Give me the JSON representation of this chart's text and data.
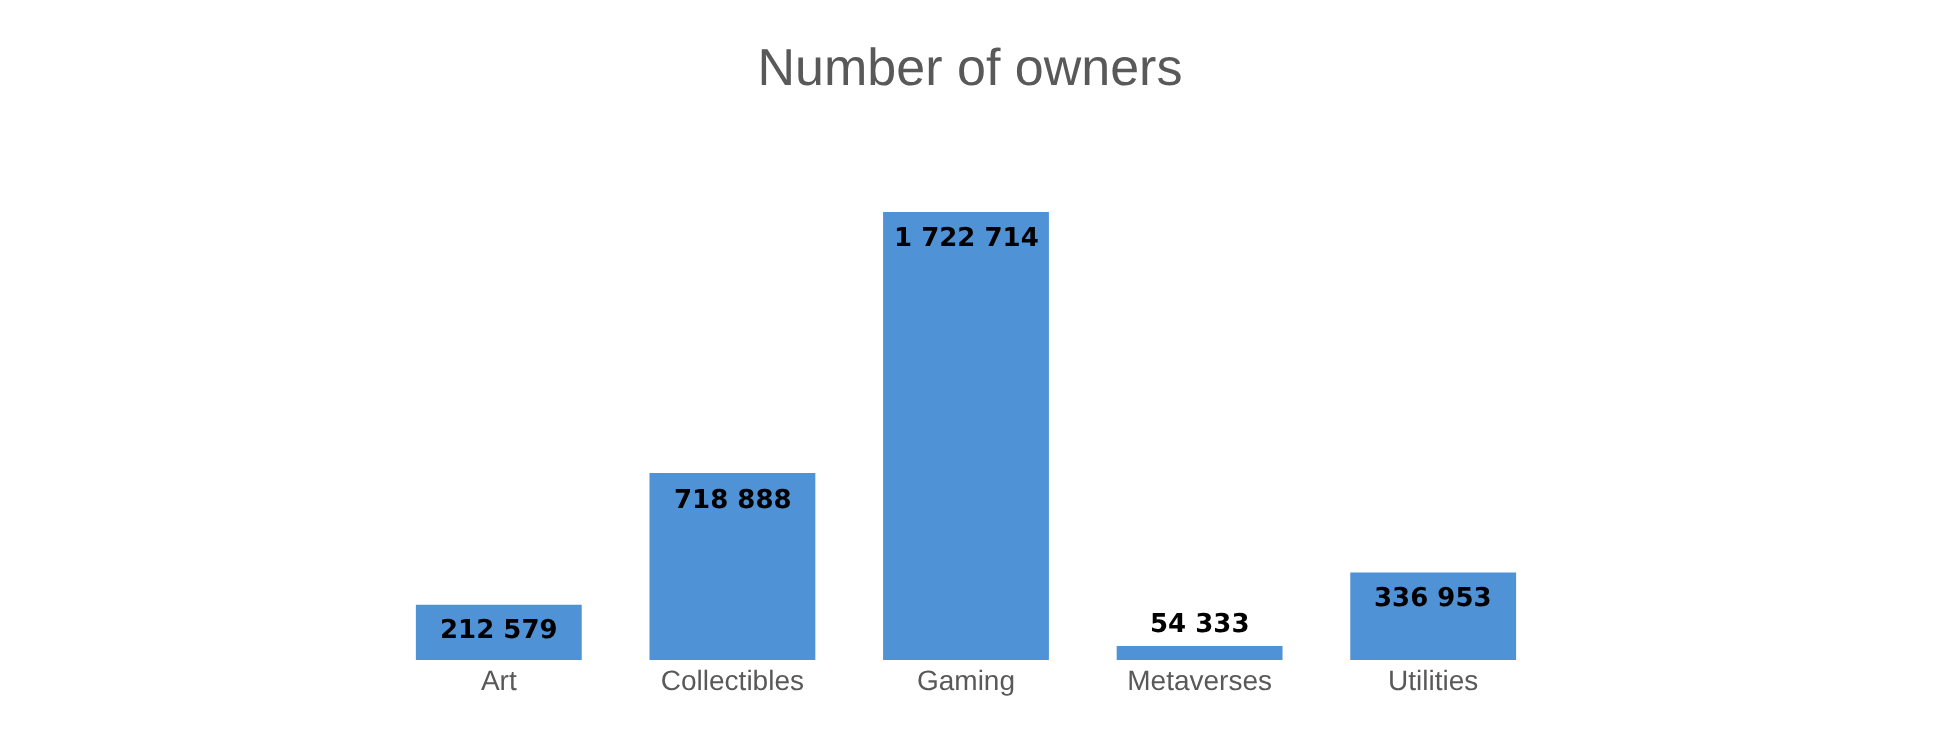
{
  "chart_data": {
    "type": "bar",
    "title": "Number of owners",
    "categories": [
      "Art",
      "Collectibles",
      "Gaming",
      "Metaverses",
      "Utilities"
    ],
    "values": [
      212579,
      718888,
      1722714,
      54333,
      336953
    ],
    "value_labels": [
      "212 579",
      "718 888",
      "1 722 714",
      "54 333",
      "336 953"
    ],
    "color": "#4f92d6",
    "legend": false
  }
}
